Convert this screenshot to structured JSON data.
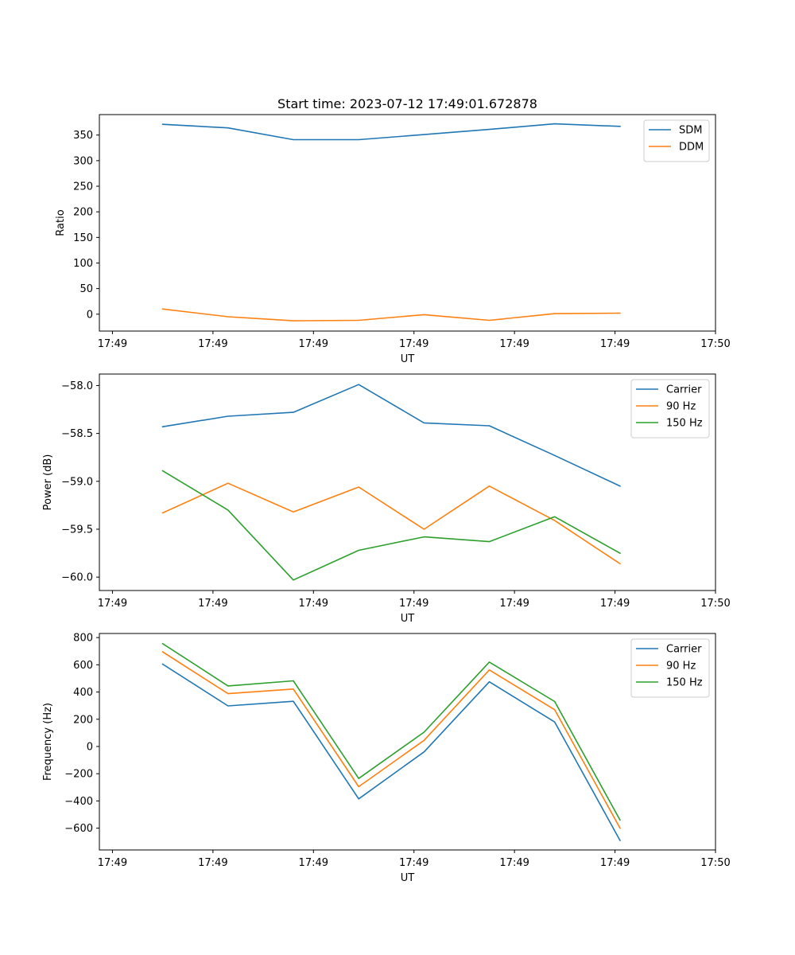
{
  "figure": {
    "title": "Start time: 2023-07-12 17:49:01.672878"
  },
  "colors": {
    "blue": "#1f77b4",
    "orange": "#ff7f0e",
    "green": "#2ca02c"
  },
  "chart_data": [
    {
      "type": "line",
      "title": "Start time: 2023-07-12 17:49:01.672878",
      "xlabel": "UT",
      "ylabel": "Ratio",
      "x_tick_labels": [
        "17:49",
        "17:49",
        "17:49",
        "17:49",
        "17:49",
        "17:49",
        "17:50"
      ],
      "x_tick_positions": [
        0,
        1,
        2,
        3,
        4,
        5,
        6
      ],
      "xlim": [
        -0.13,
        6.0
      ],
      "x": [
        0.5,
        1.15,
        1.8,
        2.45,
        3.1,
        3.75,
        4.4,
        5.05
      ],
      "ylim": [
        -33,
        390
      ],
      "y_ticks": [
        0,
        50,
        100,
        150,
        200,
        250,
        300,
        350
      ],
      "y_tick_labels": [
        "0",
        "50",
        "100",
        "150",
        "200",
        "250",
        "300",
        "350"
      ],
      "legend_position": "top-right",
      "series": [
        {
          "name": "SDM",
          "color": "#1f77b4",
          "values": [
            371,
            364,
            341,
            341,
            351,
            361,
            372,
            367
          ]
        },
        {
          "name": "DDM",
          "color": "#ff7f0e",
          "values": [
            10,
            -5,
            -13,
            -12,
            -1,
            -12,
            1,
            2
          ]
        }
      ]
    },
    {
      "type": "line",
      "title": "",
      "xlabel": "UT",
      "ylabel": "Power (dB)",
      "x_tick_labels": [
        "17:49",
        "17:49",
        "17:49",
        "17:49",
        "17:49",
        "17:49",
        "17:50"
      ],
      "x_tick_positions": [
        0,
        1,
        2,
        3,
        4,
        5,
        6
      ],
      "xlim": [
        -0.13,
        6.0
      ],
      "x": [
        0.5,
        1.15,
        1.8,
        2.45,
        3.1,
        3.75,
        4.4,
        5.05
      ],
      "ylim": [
        -60.14,
        -57.88
      ],
      "y_ticks": [
        -60.0,
        -59.5,
        -59.0,
        -58.5,
        -58.0
      ],
      "y_tick_labels": [
        "−60.0",
        "−59.5",
        "−59.0",
        "−58.5",
        "−58.0"
      ],
      "legend_position": "top-right",
      "series": [
        {
          "name": "Carrier",
          "color": "#1f77b4",
          "values": [
            -58.43,
            -58.32,
            -58.28,
            -57.99,
            -58.39,
            -58.42,
            -58.73,
            -59.05
          ]
        },
        {
          "name": "90 Hz",
          "color": "#ff7f0e",
          "values": [
            -59.33,
            -59.02,
            -59.32,
            -59.06,
            -59.5,
            -59.05,
            -59.41,
            -59.86
          ]
        },
        {
          "name": "150 Hz",
          "color": "#2ca02c",
          "values": [
            -58.89,
            -59.3,
            -60.03,
            -59.72,
            -59.58,
            -59.63,
            -59.37,
            -59.75
          ]
        }
      ]
    },
    {
      "type": "line",
      "title": "",
      "xlabel": "UT",
      "ylabel": "Frequency (Hz)",
      "x_tick_labels": [
        "17:49",
        "17:49",
        "17:49",
        "17:49",
        "17:49",
        "17:49",
        "17:50"
      ],
      "x_tick_positions": [
        0,
        1,
        2,
        3,
        4,
        5,
        6
      ],
      "xlim": [
        -0.13,
        6.0
      ],
      "x": [
        0.5,
        1.15,
        1.8,
        2.45,
        3.1,
        3.75,
        4.4,
        5.05
      ],
      "ylim": [
        -760,
        830
      ],
      "y_ticks": [
        -600,
        -400,
        -200,
        0,
        200,
        400,
        600,
        800
      ],
      "y_tick_labels": [
        "−600",
        "−400",
        "−200",
        "0",
        "200",
        "400",
        "600",
        "800"
      ],
      "legend_position": "top-right",
      "series": [
        {
          "name": "Carrier",
          "color": "#1f77b4",
          "values": [
            605,
            298,
            332,
            -385,
            -40,
            475,
            180,
            -690
          ]
        },
        {
          "name": "90 Hz",
          "color": "#ff7f0e",
          "values": [
            695,
            388,
            422,
            -295,
            45,
            562,
            270,
            -600
          ]
        },
        {
          "name": "150 Hz",
          "color": "#2ca02c",
          "values": [
            755,
            445,
            482,
            -235,
            105,
            620,
            330,
            -540
          ]
        }
      ]
    }
  ]
}
